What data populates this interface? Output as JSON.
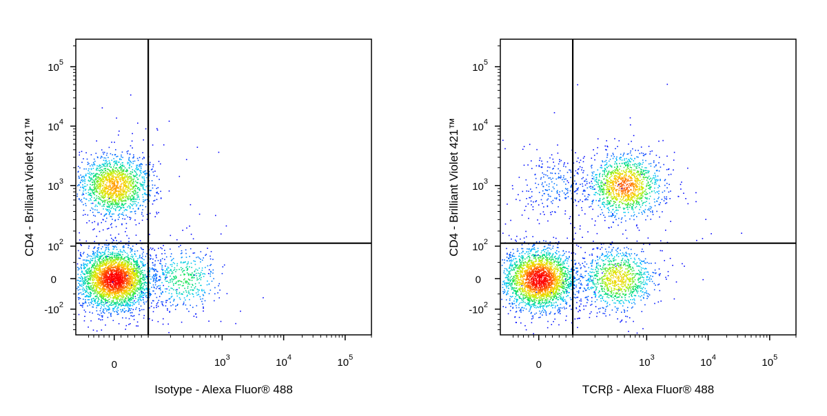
{
  "chart_data": [
    {
      "type": "scatter",
      "xlabel": "Isotype - Alexa Fluor® 488",
      "ylabel": "CD4 - Brilliant Violet 421™",
      "xscale": "biexponential",
      "yscale": "biexponential",
      "xlim": [
        -150,
        200000
      ],
      "ylim": [
        -350,
        250000
      ],
      "x_ticks": [
        {
          "value": 0,
          "base": "0",
          "exp": ""
        },
        {
          "value": 1000,
          "base": "10",
          "exp": "3"
        },
        {
          "value": 10000,
          "base": "10",
          "exp": "4"
        },
        {
          "value": 100000,
          "base": "10",
          "exp": "5"
        }
      ],
      "y_ticks": [
        {
          "value": -100,
          "base": "-10",
          "exp": "2"
        },
        {
          "value": 0,
          "base": "0",
          "exp": ""
        },
        {
          "value": 100,
          "base": "10",
          "exp": "2"
        },
        {
          "value": 1000,
          "base": "10",
          "exp": "3"
        },
        {
          "value": 10000,
          "base": "10",
          "exp": "4"
        },
        {
          "value": 100000,
          "base": "10",
          "exp": "5"
        }
      ],
      "gate": {
        "x": 100,
        "y": 130
      },
      "density_colormap": [
        "#0000ff",
        "#00c8ff",
        "#00e060",
        "#c8f000",
        "#ffc800",
        "#ff5000",
        "#ff0000"
      ],
      "populations": [
        {
          "x": 0,
          "y": 1000,
          "relative_size": 0.3,
          "peak_density": 0.7
        },
        {
          "x": 0,
          "y": 0,
          "relative_size": 0.62,
          "peak_density": 1.0
        },
        {
          "x": 300,
          "y": 0,
          "relative_size": 0.08,
          "peak_density": 0.35
        }
      ]
    },
    {
      "type": "scatter",
      "xlabel": "TCRβ - Alexa Fluor® 488",
      "ylabel": "CD4 - Brilliant Violet 421™",
      "xscale": "biexponential",
      "yscale": "biexponential",
      "xlim": [
        -150,
        200000
      ],
      "ylim": [
        -350,
        250000
      ],
      "x_ticks": [
        {
          "value": 0,
          "base": "0",
          "exp": ""
        },
        {
          "value": 1000,
          "base": "10",
          "exp": "3"
        },
        {
          "value": 10000,
          "base": "10",
          "exp": "4"
        },
        {
          "value": 100000,
          "base": "10",
          "exp": "5"
        }
      ],
      "y_ticks": [
        {
          "value": -100,
          "base": "-10",
          "exp": "2"
        },
        {
          "value": 0,
          "base": "0",
          "exp": ""
        },
        {
          "value": 100,
          "base": "10",
          "exp": "2"
        },
        {
          "value": 1000,
          "base": "10",
          "exp": "3"
        },
        {
          "value": 10000,
          "base": "10",
          "exp": "4"
        },
        {
          "value": 100000,
          "base": "10",
          "exp": "5"
        }
      ],
      "gate": {
        "x": 100,
        "y": 130
      },
      "density_colormap": [
        "#0000ff",
        "#00c8ff",
        "#00e060",
        "#c8f000",
        "#ffc800",
        "#ff5000",
        "#ff0000"
      ],
      "populations": [
        {
          "x": 0,
          "y": 0,
          "relative_size": 0.5,
          "peak_density": 1.0
        },
        {
          "x": 500,
          "y": 1000,
          "relative_size": 0.25,
          "peak_density": 0.8
        },
        {
          "x": 400,
          "y": 0,
          "relative_size": 0.2,
          "peak_density": 0.6
        },
        {
          "x": 50,
          "y": 1000,
          "relative_size": 0.05,
          "peak_density": 0.1
        }
      ]
    }
  ]
}
